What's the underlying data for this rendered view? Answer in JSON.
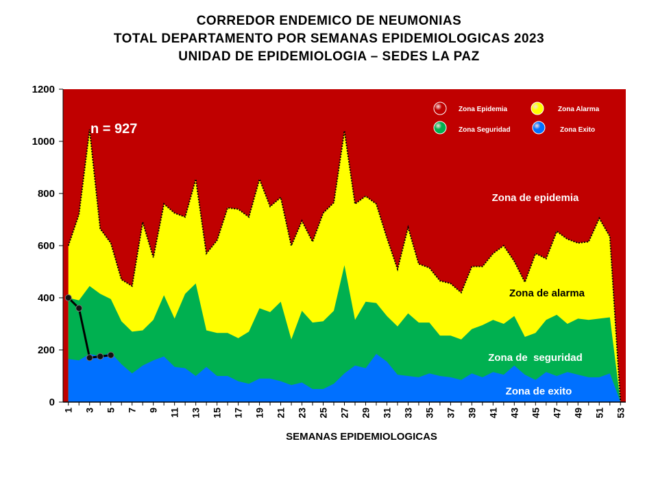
{
  "title_lines": [
    "CORREDOR ENDEMICO DE NEUMONIAS",
    "TOTAL DEPARTAMENTO POR SEMANAS EPIDEMIOLOGICAS 2023",
    "UNIDAD DE EPIDEMIOLOGIA – SEDES LA PAZ"
  ],
  "colors": {
    "epidemia": "#C00000",
    "alarma": "#FFFF00",
    "seguridad": "#00B050",
    "exito": "#0070FF",
    "cases_line": "#000000"
  },
  "chart_data": {
    "type": "area",
    "xlabel": "SEMANAS EPIDEMIOLOGICAS",
    "ylabel": "",
    "ylim": [
      0,
      1200
    ],
    "yticks": [
      0,
      200,
      400,
      600,
      800,
      1000,
      1200
    ],
    "x": [
      1,
      2,
      3,
      4,
      5,
      6,
      7,
      8,
      9,
      10,
      11,
      12,
      13,
      14,
      15,
      16,
      17,
      18,
      19,
      20,
      21,
      22,
      23,
      24,
      25,
      26,
      27,
      28,
      29,
      30,
      31,
      32,
      33,
      34,
      35,
      36,
      37,
      38,
      39,
      40,
      41,
      42,
      43,
      44,
      45,
      46,
      47,
      48,
      49,
      50,
      51,
      52,
      53
    ],
    "xtick_labels": [
      "1",
      "3",
      "5",
      "7",
      "9",
      "11",
      "13",
      "15",
      "17",
      "19",
      "21",
      "23",
      "25",
      "27",
      "29",
      "31",
      "33",
      "35",
      "37",
      "39",
      "41",
      "43",
      "45",
      "47",
      "49",
      "51",
      "53"
    ],
    "annotation": "n = 927",
    "legend_position": "top-right",
    "legend": [
      {
        "label": "Zona Epidemia",
        "color_key": "epidemia"
      },
      {
        "label": "Zona Alarma",
        "color_key": "alarma"
      },
      {
        "label": "Zona Seguridad",
        "color_key": "seguridad"
      },
      {
        "label": "Zona Exito",
        "color_key": "exito"
      }
    ],
    "zone_labels": [
      {
        "text": "Zona de epidemia",
        "color": "#ffffff"
      },
      {
        "text": "Zona de alarma",
        "color": "#000000"
      },
      {
        "text": "Zona de  seguridad",
        "color": "#ffffff"
      },
      {
        "text": "Zona de exito",
        "color": "#ffffff"
      }
    ],
    "series": [
      {
        "key": "exito",
        "values": [
          165,
          160,
          185,
          175,
          190,
          145,
          110,
          140,
          160,
          175,
          135,
          130,
          100,
          135,
          100,
          100,
          80,
          70,
          90,
          90,
          80,
          65,
          75,
          50,
          50,
          70,
          110,
          140,
          130,
          185,
          155,
          105,
          100,
          95,
          110,
          100,
          95,
          85,
          110,
          95,
          115,
          105,
          140,
          105,
          85,
          115,
          100,
          115,
          105,
          95,
          95,
          110,
          0
        ]
      },
      {
        "key": "seguridad",
        "values": [
          400,
          390,
          445,
          415,
          395,
          310,
          270,
          275,
          315,
          410,
          320,
          415,
          455,
          275,
          265,
          265,
          245,
          270,
          360,
          345,
          385,
          240,
          350,
          305,
          310,
          350,
          525,
          315,
          385,
          380,
          330,
          290,
          340,
          305,
          305,
          255,
          255,
          240,
          280,
          295,
          315,
          300,
          330,
          250,
          265,
          315,
          335,
          300,
          320,
          315,
          320,
          325,
          0
        ]
      },
      {
        "key": "alarma",
        "values": [
          600,
          720,
          1045,
          665,
          610,
          470,
          445,
          690,
          555,
          760,
          725,
          710,
          855,
          570,
          620,
          745,
          740,
          710,
          855,
          750,
          785,
          600,
          695,
          615,
          725,
          765,
          1040,
          760,
          790,
          760,
          630,
          510,
          670,
          530,
          515,
          465,
          455,
          420,
          520,
          520,
          570,
          600,
          540,
          460,
          570,
          550,
          655,
          625,
          610,
          615,
          705,
          635,
          0
        ]
      }
    ],
    "cases": {
      "x": [
        1,
        2,
        3,
        4,
        5
      ],
      "values": [
        400,
        360,
        170,
        175,
        180
      ]
    }
  }
}
